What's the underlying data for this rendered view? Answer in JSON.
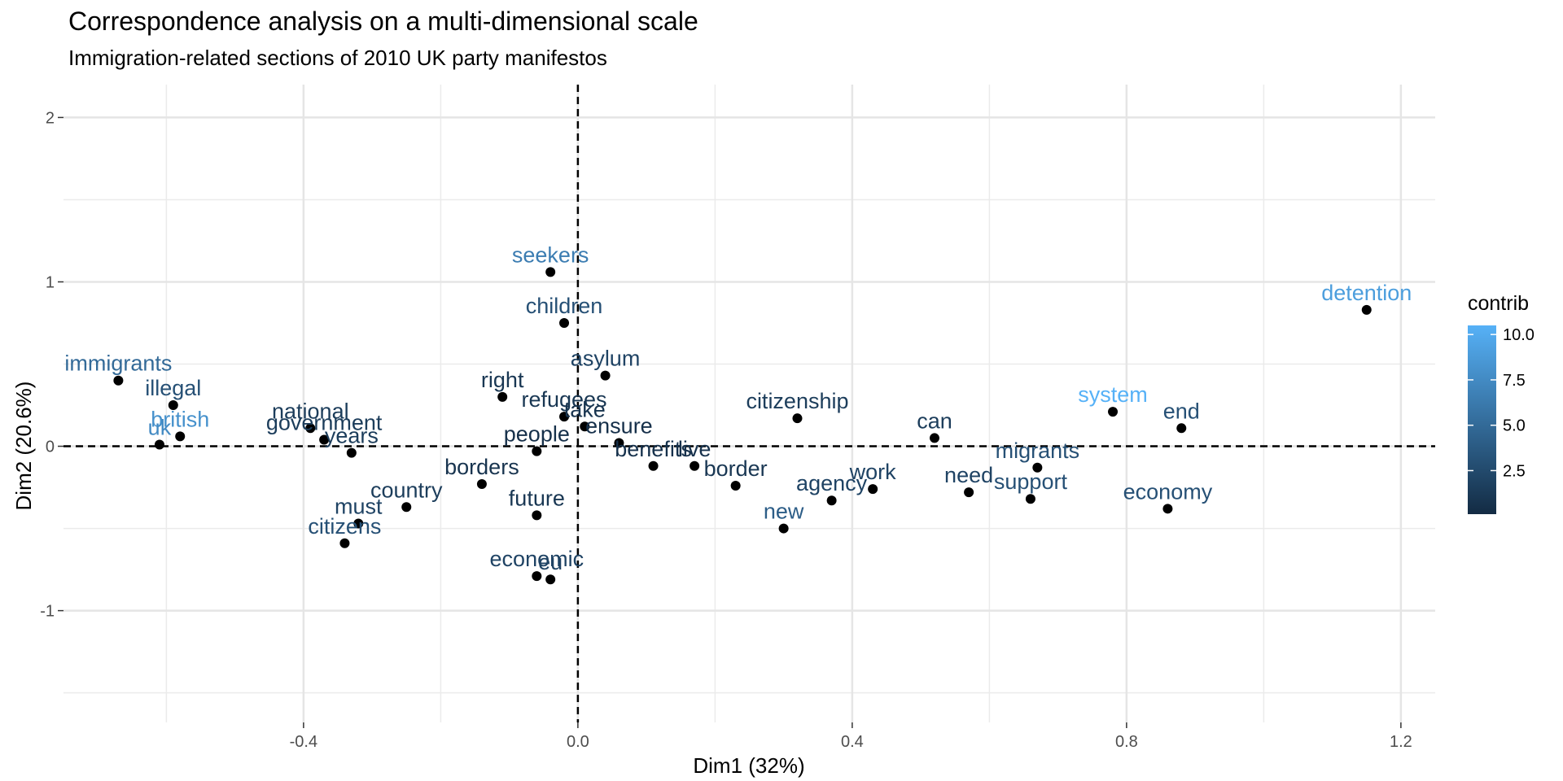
{
  "chart_data": {
    "type": "scatter",
    "title": "Correspondence analysis on a multi-dimensional scale",
    "subtitle": "Immigration-related sections of 2010 UK party manifestos",
    "xlabel": "Dim1 (32%)",
    "ylabel": "Dim2 (20.6%)",
    "xlim": [
      -0.75,
      1.25
    ],
    "ylim": [
      -1.68,
      2.2
    ],
    "x_ticks": [
      -0.4,
      0.0,
      0.4,
      0.8,
      1.2
    ],
    "x_tick_labels": [
      "-0.4",
      "0.0",
      "0.4",
      "0.8",
      "1.2"
    ],
    "y_ticks": [
      -1,
      0,
      1,
      2
    ],
    "y_tick_labels": [
      "-1",
      "0",
      "1",
      "2"
    ],
    "reference_lines": {
      "x": 0,
      "y": 0,
      "style": "dashed"
    },
    "grid": true,
    "color_variable": "contrib",
    "color_scale": {
      "low": "#132B43",
      "high": "#56B1F7",
      "min": 0.1,
      "max": 10.5
    },
    "legend": {
      "title": "contrib",
      "position": "right",
      "labels": [
        "10.0",
        "7.5",
        "5.0",
        "2.5"
      ],
      "values": [
        10.0,
        7.5,
        5.0,
        2.5
      ]
    },
    "points": [
      {
        "label": "seekers",
        "x": -0.04,
        "y": 1.06,
        "contrib": 6.5
      },
      {
        "label": "children",
        "x": -0.02,
        "y": 0.75,
        "contrib": 3.0
      },
      {
        "label": "asylum",
        "x": 0.04,
        "y": 0.43,
        "contrib": 2.0
      },
      {
        "label": "right",
        "x": -0.11,
        "y": 0.3,
        "contrib": 1.0
      },
      {
        "label": "refugees",
        "x": -0.02,
        "y": 0.18,
        "contrib": 1.0
      },
      {
        "label": "take",
        "x": 0.01,
        "y": 0.12,
        "contrib": 0.8
      },
      {
        "label": "ensure",
        "x": 0.06,
        "y": 0.02,
        "contrib": 0.5
      },
      {
        "label": "people",
        "x": -0.06,
        "y": -0.03,
        "contrib": 0.5
      },
      {
        "label": "benefits",
        "x": 0.11,
        "y": -0.12,
        "contrib": 0.6
      },
      {
        "label": "live",
        "x": 0.17,
        "y": -0.12,
        "contrib": 0.6
      },
      {
        "label": "border",
        "x": 0.23,
        "y": -0.24,
        "contrib": 1.0
      },
      {
        "label": "borders",
        "x": -0.14,
        "y": -0.23,
        "contrib": 0.8
      },
      {
        "label": "future",
        "x": -0.06,
        "y": -0.42,
        "contrib": 1.0
      },
      {
        "label": "economic",
        "x": -0.06,
        "y": -0.79,
        "contrib": 2.0
      },
      {
        "label": "eu",
        "x": -0.04,
        "y": -0.81,
        "contrib": 2.0
      },
      {
        "label": "citizenship",
        "x": 0.32,
        "y": 0.17,
        "contrib": 1.5
      },
      {
        "label": "new",
        "x": 0.3,
        "y": -0.5,
        "contrib": 4.0
      },
      {
        "label": "agency",
        "x": 0.37,
        "y": -0.33,
        "contrib": 2.0
      },
      {
        "label": "work",
        "x": 0.43,
        "y": -0.26,
        "contrib": 2.0
      },
      {
        "label": "can",
        "x": 0.52,
        "y": 0.05,
        "contrib": 1.5
      },
      {
        "label": "need",
        "x": 0.57,
        "y": -0.28,
        "contrib": 2.0
      },
      {
        "label": "migrants",
        "x": 0.67,
        "y": -0.13,
        "contrib": 3.0
      },
      {
        "label": "support",
        "x": 0.66,
        "y": -0.32,
        "contrib": 3.0
      },
      {
        "label": "system",
        "x": 0.78,
        "y": 0.21,
        "contrib": 10.5
      },
      {
        "label": "end",
        "x": 0.88,
        "y": 0.11,
        "contrib": 3.0
      },
      {
        "label": "economy",
        "x": 0.86,
        "y": -0.38,
        "contrib": 3.0
      },
      {
        "label": "detention",
        "x": 1.15,
        "y": 0.83,
        "contrib": 9.0
      },
      {
        "label": "immigrants",
        "x": -0.67,
        "y": 0.4,
        "contrib": 5.0
      },
      {
        "label": "illegal",
        "x": -0.59,
        "y": 0.25,
        "contrib": 3.0
      },
      {
        "label": "british",
        "x": -0.58,
        "y": 0.06,
        "contrib": 8.0
      },
      {
        "label": "uk",
        "x": -0.61,
        "y": 0.01,
        "contrib": 7.5
      },
      {
        "label": "national",
        "x": -0.39,
        "y": 0.11,
        "contrib": 1.5
      },
      {
        "label": "government",
        "x": -0.37,
        "y": 0.04,
        "contrib": 1.5
      },
      {
        "label": "years",
        "x": -0.33,
        "y": -0.04,
        "contrib": 1.5
      },
      {
        "label": "country",
        "x": -0.25,
        "y": -0.37,
        "contrib": 1.5
      },
      {
        "label": "must",
        "x": -0.32,
        "y": -0.47,
        "contrib": 2.0
      },
      {
        "label": "citizens",
        "x": -0.34,
        "y": -0.59,
        "contrib": 3.0
      }
    ]
  }
}
